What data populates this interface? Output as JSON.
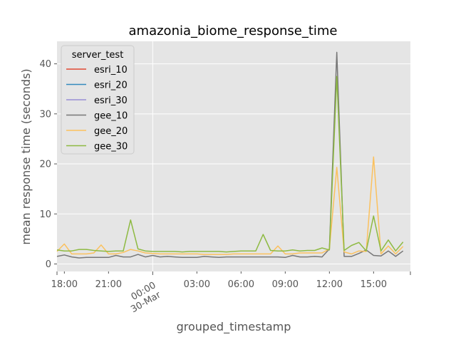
{
  "chart_data": {
    "type": "line",
    "title": "amazonia_biome_response_time",
    "xlabel": "grouped_timestamp",
    "ylabel": "mean response time (seconds)",
    "x_range_hours": [
      -6.5,
      17.5
    ],
    "ylim": [
      -1.5,
      44.5
    ],
    "grid": true,
    "legend_placement": "top-left",
    "legend_title": "server_test",
    "x_ticks": [
      {
        "hour": -6,
        "label": "18:00"
      },
      {
        "hour": -3,
        "label": "21:00"
      },
      {
        "hour": 0,
        "label": "00:00",
        "label2": "30-Mar",
        "rotated": true
      },
      {
        "hour": 3,
        "label": "03:00"
      },
      {
        "hour": 6,
        "label": "06:00"
      },
      {
        "hour": 9,
        "label": "09:00"
      },
      {
        "hour": 12,
        "label": "12:00"
      },
      {
        "hour": 15,
        "label": "15:00"
      }
    ],
    "y_ticks": [
      0,
      10,
      20,
      30,
      40
    ],
    "x_hours": [
      -6.5,
      -6.0,
      -5.5,
      -5.0,
      -4.5,
      -4.0,
      -3.5,
      -3.0,
      -2.5,
      -2.0,
      -1.5,
      -1.0,
      -0.5,
      0.0,
      0.5,
      1.0,
      1.5,
      2.0,
      2.5,
      3.0,
      3.5,
      4.0,
      4.5,
      5.0,
      5.5,
      6.0,
      6.5,
      7.0,
      7.5,
      8.0,
      8.5,
      9.0,
      9.5,
      10.0,
      10.5,
      11.0,
      11.5,
      12.0,
      12.5,
      13.0,
      13.5,
      14.0,
      14.5,
      15.0,
      15.5,
      16.0,
      16.5,
      17.0,
      17.5
    ],
    "series": [
      {
        "name": "esri_10",
        "color": "#E24A33",
        "values": []
      },
      {
        "name": "esri_20",
        "color": "#348ABD",
        "values": []
      },
      {
        "name": "esri_30",
        "color": "#988ED5",
        "values": []
      },
      {
        "name": "gee_10",
        "color": "#777777",
        "values": [
          1.5,
          1.8,
          1.4,
          1.2,
          1.3,
          1.3,
          1.3,
          1.3,
          1.7,
          1.4,
          1.4,
          1.9,
          1.4,
          1.7,
          1.4,
          1.5,
          1.4,
          1.3,
          1.3,
          1.3,
          1.5,
          1.4,
          1.3,
          1.4,
          1.4,
          1.4,
          1.4,
          1.4,
          1.4,
          1.4,
          1.4,
          1.3,
          1.7,
          1.4,
          1.4,
          1.5,
          1.4,
          3.0,
          42.3,
          1.5,
          1.5,
          2.1,
          2.8,
          1.7,
          1.6,
          2.6,
          1.5,
          2.6,
          null
        ]
      },
      {
        "name": "gee_20",
        "color": "#FBC15E",
        "values": [
          2.5,
          4.0,
          2.0,
          2.0,
          2.0,
          2.2,
          3.8,
          2.0,
          2.0,
          2.3,
          2.9,
          2.6,
          2.2,
          2.1,
          2.0,
          2.0,
          2.0,
          2.0,
          2.0,
          2.0,
          1.9,
          1.9,
          1.9,
          1.9,
          2.0,
          2.0,
          2.0,
          2.0,
          2.0,
          2.0,
          3.6,
          2.0,
          2.0,
          2.2,
          2.2,
          2.2,
          2.2,
          3.0,
          19.3,
          2.4,
          2.0,
          2.6,
          2.5,
          21.4,
          2.0,
          3.6,
          2.0,
          3.5,
          null
        ]
      },
      {
        "name": "gee_30",
        "color": "#8EBA42",
        "values": [
          2.8,
          2.6,
          2.6,
          2.9,
          2.9,
          2.7,
          2.6,
          2.5,
          2.6,
          2.6,
          8.8,
          3.0,
          2.6,
          2.5,
          2.5,
          2.5,
          2.5,
          2.4,
          2.5,
          2.5,
          2.5,
          2.5,
          2.5,
          2.4,
          2.5,
          2.6,
          2.6,
          2.6,
          5.9,
          2.7,
          2.6,
          2.6,
          2.8,
          2.6,
          2.7,
          2.7,
          3.2,
          2.8,
          37.5,
          2.7,
          3.7,
          4.3,
          2.6,
          9.6,
          2.6,
          4.8,
          2.6,
          4.4,
          null
        ]
      }
    ]
  }
}
